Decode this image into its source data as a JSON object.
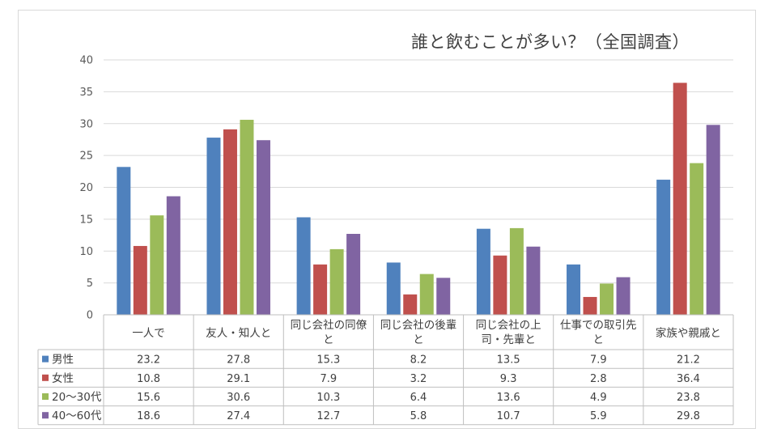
{
  "chart_data": {
    "type": "bar",
    "title": "誰と飲むことが多い？（全国調査）",
    "xlabel": "",
    "ylabel": "",
    "ylim": [
      0,
      40
    ],
    "yticks": [
      0,
      5,
      10,
      15,
      20,
      25,
      30,
      35,
      40
    ],
    "grid": true,
    "legend": "data-table",
    "categories": [
      "一人で",
      "友人・知人と",
      "同じ会社の同僚と",
      "同じ会社の後輩と",
      "同じ会社の上司・先輩と",
      "仕事での取引先と",
      "家族や親戚と"
    ],
    "category_lines": [
      [
        "一人で"
      ],
      [
        "友人・知人と"
      ],
      [
        "同じ会社の同僚",
        "と"
      ],
      [
        "同じ会社の後輩",
        "と"
      ],
      [
        "同じ会社の上",
        "司・先輩と"
      ],
      [
        "仕事での取引先",
        "と"
      ],
      [
        "家族や親戚と"
      ]
    ],
    "series": [
      {
        "name": "男性",
        "color": "#4f81bd",
        "values": [
          23.2,
          27.8,
          15.3,
          8.2,
          13.5,
          7.9,
          21.2
        ]
      },
      {
        "name": "女性",
        "color": "#c0504d",
        "values": [
          10.8,
          29.1,
          7.9,
          3.2,
          9.3,
          2.8,
          36.4
        ]
      },
      {
        "name": "20～30代",
        "color": "#9bbb59",
        "values": [
          15.6,
          30.6,
          10.3,
          6.4,
          13.6,
          4.9,
          23.8
        ]
      },
      {
        "name": "40～60代",
        "color": "#8064a2",
        "values": [
          18.6,
          27.4,
          12.7,
          5.8,
          10.7,
          5.9,
          29.8
        ]
      }
    ]
  }
}
